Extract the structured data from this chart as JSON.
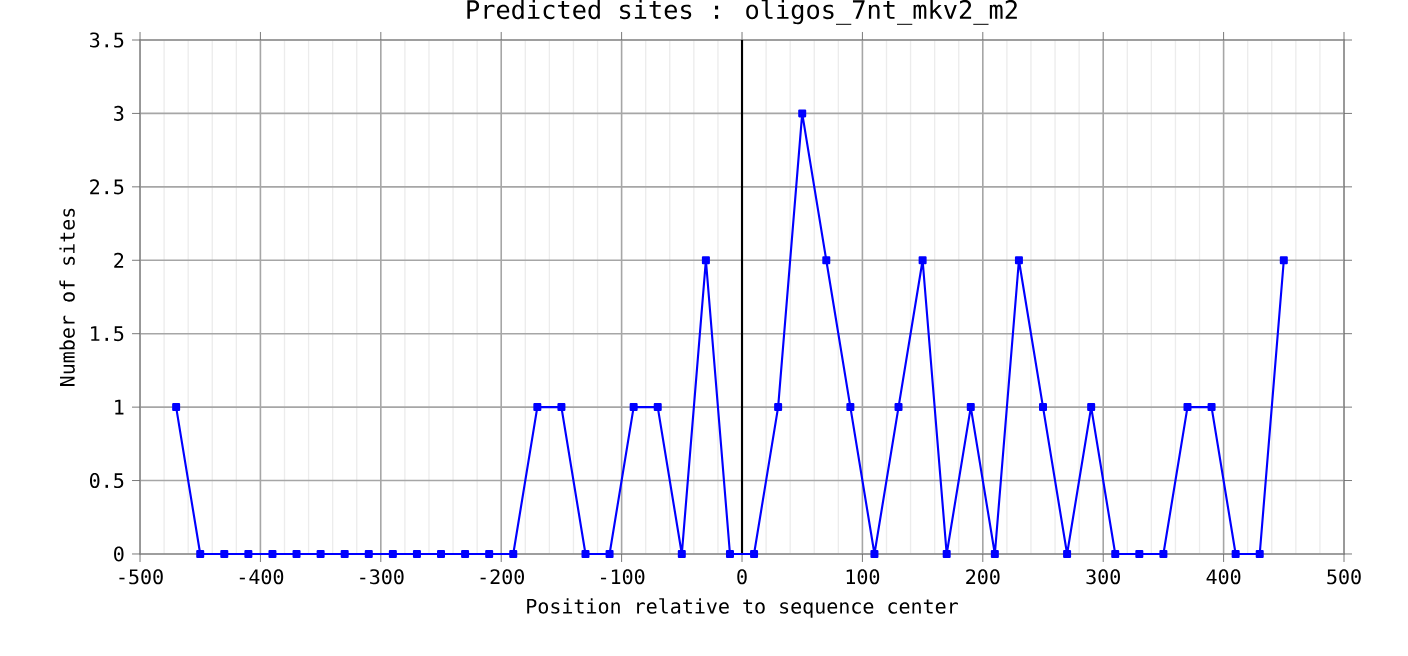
{
  "chart_data": {
    "type": "line",
    "title": "Predicted sites : oligos_7nt_mkv2_m2",
    "xlabel": "Position relative to sequence center",
    "ylabel": "Number of sites",
    "x": [
      -470,
      -450,
      -430,
      -410,
      -390,
      -370,
      -350,
      -330,
      -310,
      -290,
      -270,
      -250,
      -230,
      -210,
      -190,
      -170,
      -150,
      -130,
      -110,
      -90,
      -70,
      -50,
      -30,
      -10,
      10,
      30,
      50,
      70,
      90,
      110,
      130,
      150,
      170,
      190,
      210,
      230,
      250,
      270,
      290,
      310,
      330,
      350,
      370,
      390,
      410,
      430,
      450
    ],
    "series": [
      {
        "color": "#0000ff",
        "values": [
          1,
          0,
          0,
          0,
          0,
          0,
          0,
          0,
          0,
          0,
          0,
          0,
          0,
          0,
          0,
          1,
          1,
          0,
          0,
          1,
          1,
          0,
          2,
          0,
          0,
          1,
          3,
          2,
          1,
          0,
          1,
          2,
          0,
          1,
          0,
          2,
          1,
          0,
          1,
          0,
          0,
          0,
          1,
          1,
          0,
          0,
          2
        ]
      }
    ],
    "xlim": [
      -500,
      500
    ],
    "xticks": [
      -500,
      -400,
      -300,
      -200,
      -100,
      0,
      100,
      200,
      300,
      400,
      500
    ],
    "ylim": [
      0,
      3.5
    ],
    "yticks": [
      0,
      0.5,
      1,
      1.5,
      2,
      2.5,
      3,
      3.5
    ],
    "ref_lines": [
      {
        "axis": "x",
        "value": 0,
        "color": "#000000"
      }
    ],
    "grid": true,
    "marker": "square",
    "line_style": "solid"
  }
}
